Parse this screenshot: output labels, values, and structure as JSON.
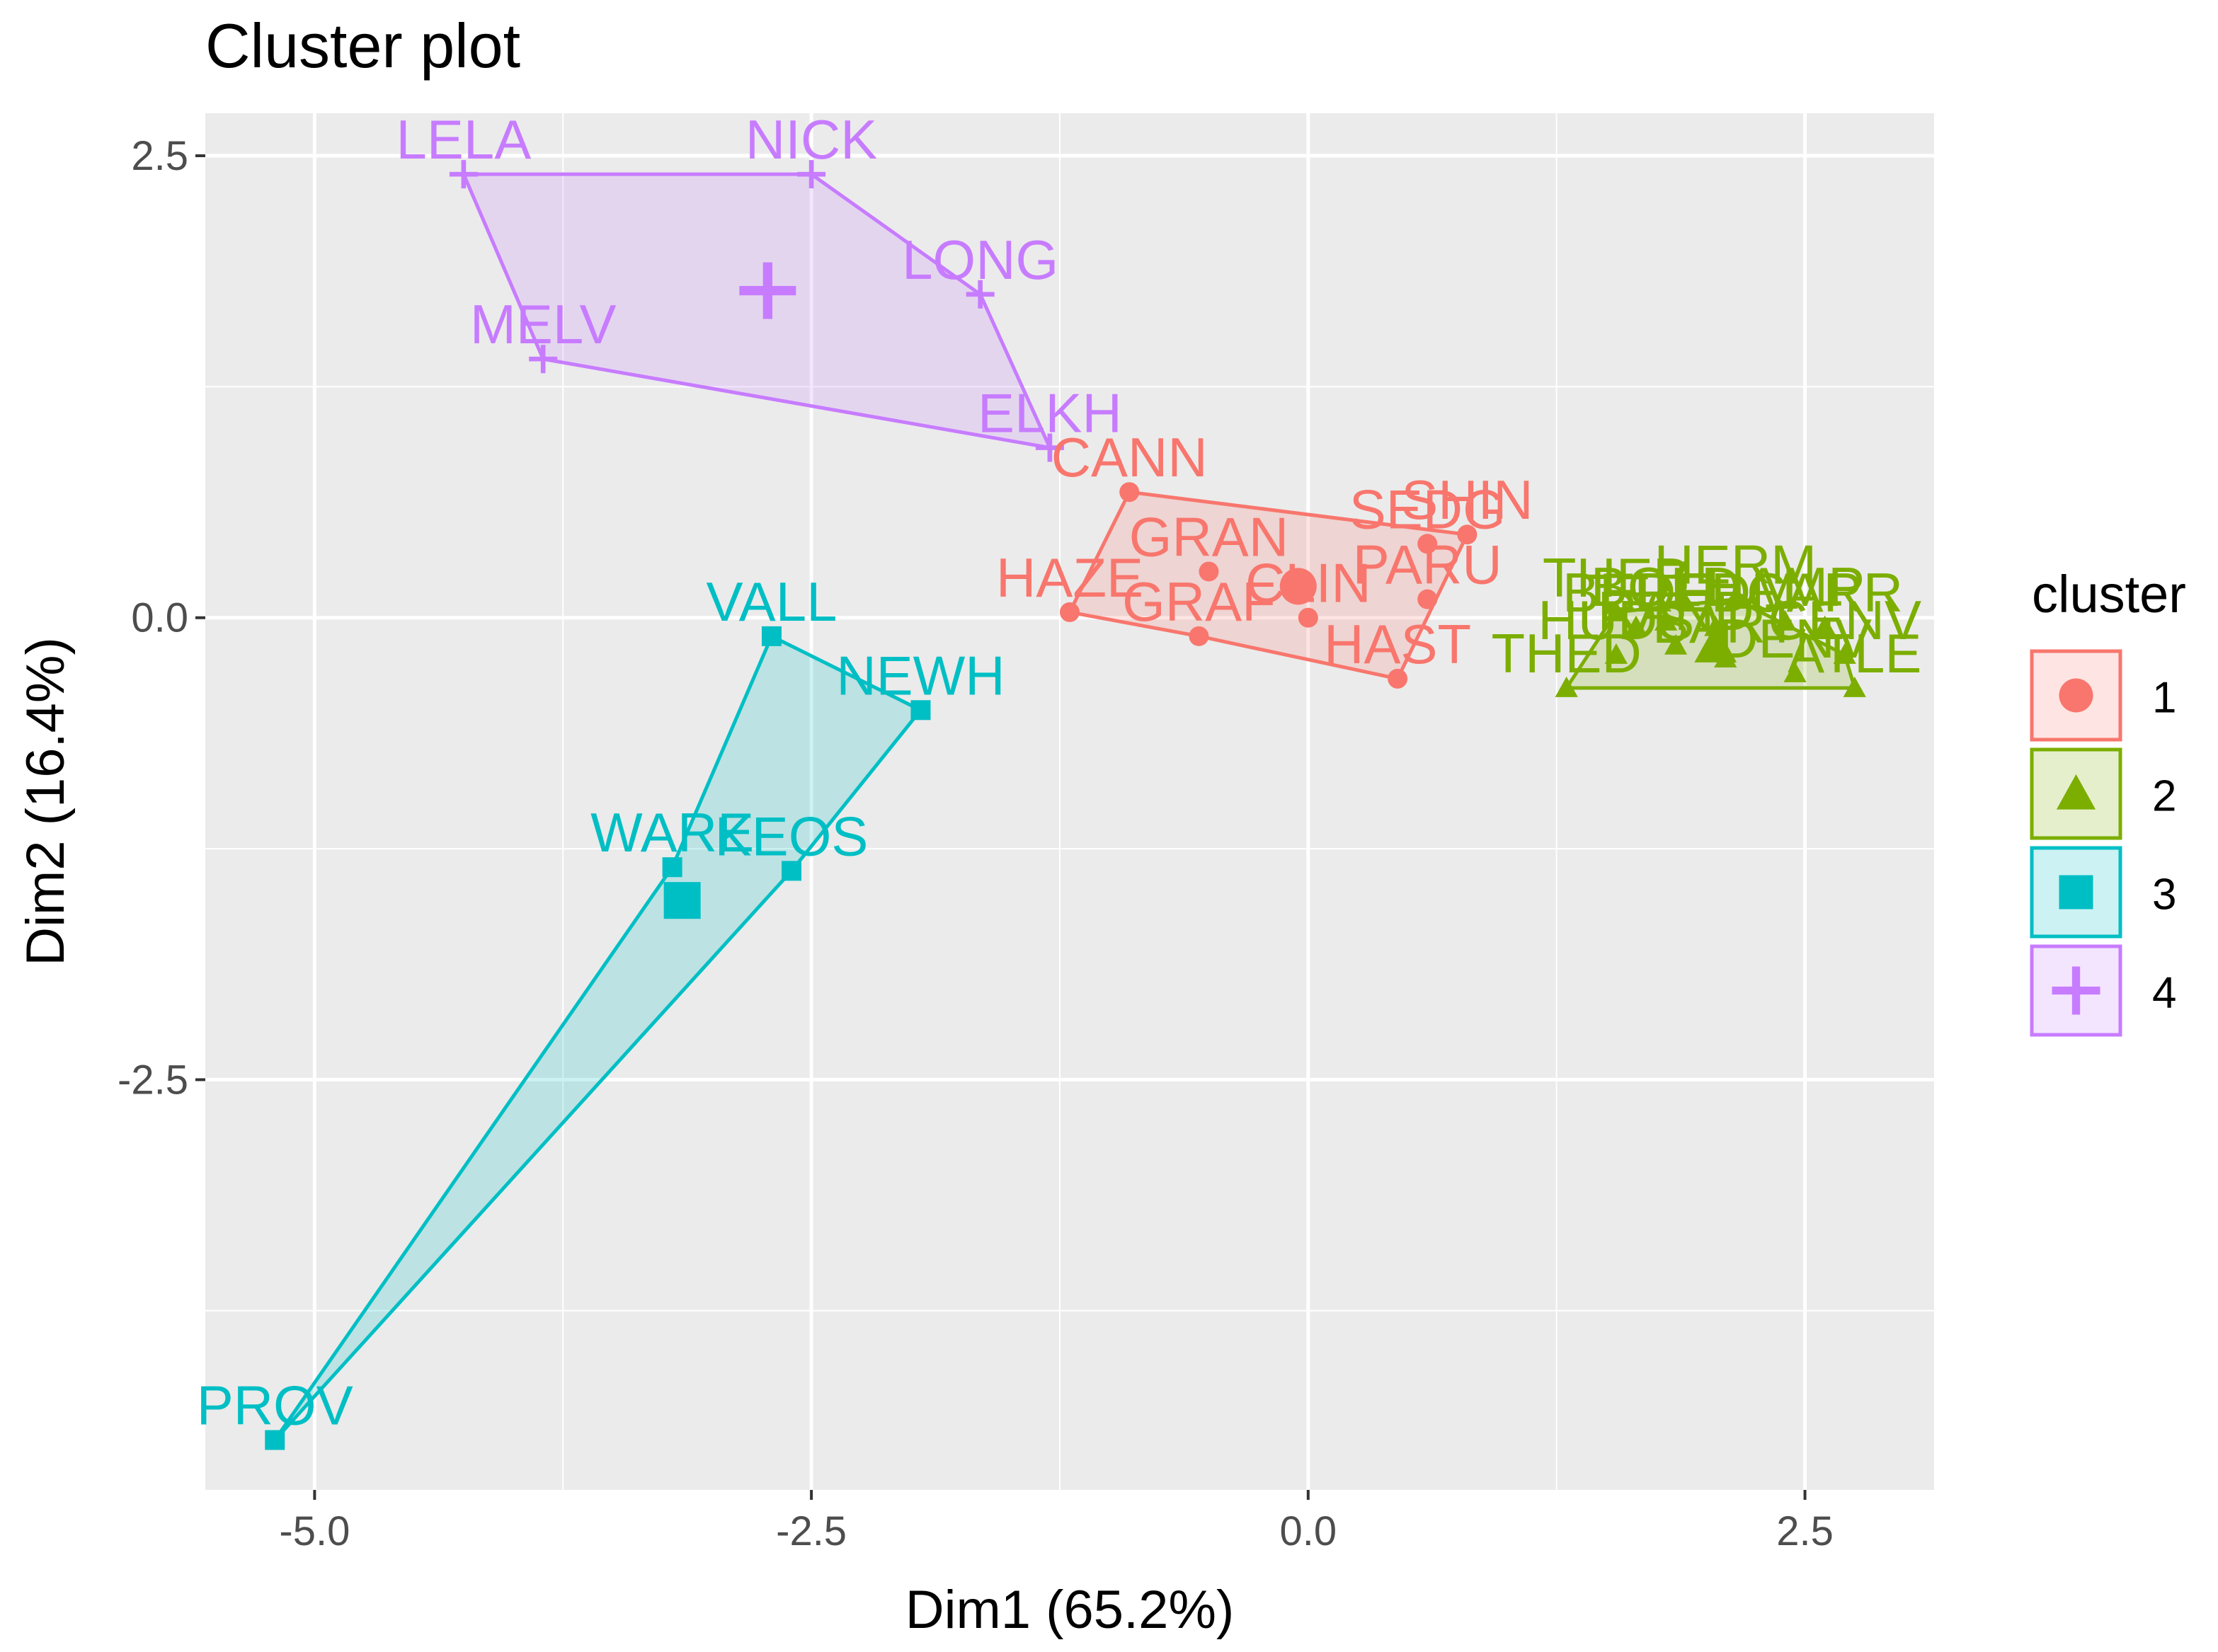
{
  "chart_data": {
    "type": "scatter",
    "title": "Cluster plot",
    "xlabel": "Dim1 (65.2%)",
    "ylabel": "Dim2 (16.4%)",
    "xlim": [
      -5.55,
      3.15
    ],
    "ylim": [
      -4.72,
      2.73
    ],
    "x_ticks": [
      -5.0,
      -2.5,
      0.0,
      2.5
    ],
    "x_tick_labels": [
      "-5.0",
      "-2.5",
      "0.0",
      "2.5"
    ],
    "y_ticks": [
      -2.5,
      0.0,
      2.5
    ],
    "y_tick_labels": [
      "-2.5",
      "0.0",
      "2.5"
    ],
    "grid": true,
    "legend": {
      "title": "cluster",
      "placement": "right",
      "entries": [
        {
          "label": "1",
          "color": "#F8766D",
          "shape": "circle"
        },
        {
          "label": "2",
          "color": "#7CAE00",
          "shape": "triangle"
        },
        {
          "label": "3",
          "color": "#00BFC4",
          "shape": "square"
        },
        {
          "label": "4",
          "color": "#C77CFF",
          "shape": "cross"
        }
      ]
    },
    "clusters": [
      {
        "id": "1",
        "color": "#F8766D",
        "shape": "circle",
        "centroid": [
          -0.05,
          0.17
        ],
        "hull": [
          "HAZE",
          "CANN",
          "SHIN",
          "HAST",
          "GRAF"
        ],
        "points": [
          {
            "label": "CANN",
            "x": -0.9,
            "y": 0.68
          },
          {
            "label": "SEDG",
            "x": 0.6,
            "y": 0.4
          },
          {
            "label": "SHIN",
            "x": 0.8,
            "y": 0.45
          },
          {
            "label": "GRAN",
            "x": -0.5,
            "y": 0.25
          },
          {
            "label": "PARU",
            "x": 0.6,
            "y": 0.1
          },
          {
            "label": "HAZE",
            "x": -1.2,
            "y": 0.03
          },
          {
            "label": "GRAF",
            "x": -0.55,
            "y": -0.1
          },
          {
            "label": "CLIN",
            "x": 0.0,
            "y": 0.0
          },
          {
            "label": "HAST",
            "x": 0.45,
            "y": -0.33
          }
        ]
      },
      {
        "id": "2",
        "color": "#7CAE00",
        "shape": "triangle",
        "centroid": [
          2.05,
          -0.15
        ],
        "hull": [
          "THED",
          "THEB",
          "HERM",
          "CENV",
          "ATLE"
        ],
        "points": [
          {
            "label": "THEB",
            "x": 1.55,
            "y": 0.03
          },
          {
            "label": "HERM",
            "x": 2.15,
            "y": 0.1
          },
          {
            "label": "BEDF",
            "x": 1.65,
            "y": -0.05
          },
          {
            "label": "BOLD",
            "x": 1.8,
            "y": -0.02
          },
          {
            "label": "REDM",
            "x": 2.05,
            "y": -0.05
          },
          {
            "label": "HAMP",
            "x": 2.4,
            "y": -0.02
          },
          {
            "label": "CARR",
            "x": 2.6,
            "y": -0.05
          },
          {
            "label": "THED",
            "x": 1.3,
            "y": -0.38
          },
          {
            "label": "CENV",
            "x": 2.7,
            "y": -0.2
          },
          {
            "label": "ATLE",
            "x": 2.75,
            "y": -0.38
          },
          {
            "label": "DENV",
            "x": 2.45,
            "y": -0.3
          },
          {
            "label": "HUDS",
            "x": 1.55,
            "y": -0.2
          },
          {
            "label": "RAND",
            "x": 1.85,
            "y": -0.15
          },
          {
            "label": "BART",
            "x": 2.1,
            "y": -0.22
          }
        ]
      },
      {
        "id": "3",
        "color": "#00BFC4",
        "shape": "square",
        "centroid": [
          -3.15,
          -1.53
        ],
        "hull": [
          "PROV",
          "WARE",
          "VALL",
          "NEWH",
          "KEOS"
        ],
        "points": [
          {
            "label": "VALL",
            "x": -2.7,
            "y": -0.1
          },
          {
            "label": "NEWH",
            "x": -1.95,
            "y": -0.5
          },
          {
            "label": "WARE",
            "x": -3.2,
            "y": -1.35
          },
          {
            "label": "KEOS",
            "x": -2.6,
            "y": -1.37
          },
          {
            "label": "PROV",
            "x": -5.2,
            "y": -4.45
          }
        ]
      },
      {
        "id": "4",
        "color": "#C77CFF",
        "shape": "cross",
        "centroid": [
          -2.72,
          1.77
        ],
        "hull": [
          "LELA",
          "NICK",
          "LONG",
          "ELKH",
          "MELV"
        ],
        "points": [
          {
            "label": "LELA",
            "x": -4.25,
            "y": 2.4
          },
          {
            "label": "NICK",
            "x": -2.5,
            "y": 2.4
          },
          {
            "label": "LONG",
            "x": -1.65,
            "y": 1.75
          },
          {
            "label": "MELV",
            "x": -3.85,
            "y": 1.4
          },
          {
            "label": "ELKH",
            "x": -1.3,
            "y": 0.92
          }
        ]
      }
    ]
  }
}
